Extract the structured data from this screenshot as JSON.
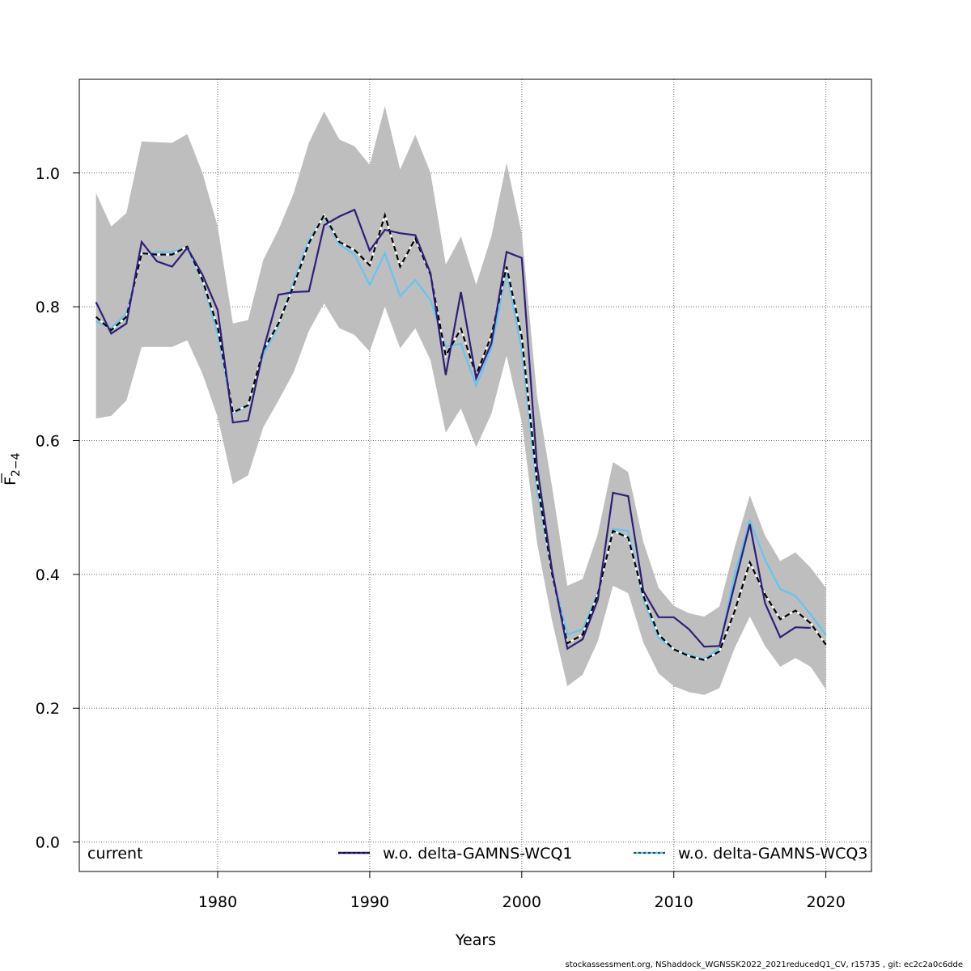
{
  "chart_data": {
    "type": "line",
    "title": "",
    "xlabel": "Years",
    "ylabel_main": "F",
    "ylabel_sub": "2−4",
    "xlim": [
      1970.9,
      2023.0
    ],
    "ylim": [
      -0.044,
      1.14
    ],
    "x_ticks": [
      1980,
      1990,
      2000,
      2010,
      2020
    ],
    "x_tick_labels": [
      "1980",
      "1990",
      "2000",
      "2010",
      "2020"
    ],
    "y_ticks": [
      0.0,
      0.2,
      0.4,
      0.6,
      0.8,
      1.0
    ],
    "y_tick_labels": [
      "0.0",
      "0.2",
      "0.4",
      "0.6",
      "0.8",
      "1.0"
    ],
    "grid": true,
    "legend_position": "bottom",
    "x": [
      1972,
      1973,
      1974,
      1975,
      1976,
      1977,
      1978,
      1979,
      1980,
      1981,
      1982,
      1983,
      1984,
      1985,
      1986,
      1987,
      1988,
      1989,
      1990,
      1991,
      1992,
      1993,
      1994,
      1995,
      1996,
      1997,
      1998,
      1999,
      2000,
      2001,
      2002,
      2003,
      2004,
      2005,
      2006,
      2007,
      2008,
      2009,
      2010,
      2011,
      2012,
      2013,
      2014,
      2015,
      2016,
      2017,
      2018,
      2019,
      2020
    ],
    "band": {
      "color": "#bebebe",
      "upper": [
        0.97,
        0.92,
        0.94,
        1.047,
        1.046,
        1.045,
        1.058,
        1.0,
        0.92,
        0.775,
        0.78,
        0.87,
        0.915,
        0.97,
        1.045,
        1.092,
        1.05,
        1.04,
        1.012,
        1.1,
        1.005,
        1.057,
        1.0,
        0.863,
        0.905,
        0.833,
        0.905,
        1.015,
        0.91,
        0.668,
        0.53,
        0.383,
        0.393,
        0.46,
        0.568,
        0.553,
        0.448,
        0.38,
        0.353,
        0.342,
        0.337,
        0.352,
        0.44,
        0.518,
        0.458,
        0.42,
        0.433,
        0.41,
        0.38
      ],
      "lower": [
        0.633,
        0.637,
        0.66,
        0.74,
        0.74,
        0.74,
        0.75,
        0.7,
        0.635,
        0.535,
        0.548,
        0.62,
        0.66,
        0.702,
        0.764,
        0.805,
        0.768,
        0.758,
        0.733,
        0.8,
        0.738,
        0.768,
        0.72,
        0.612,
        0.648,
        0.59,
        0.64,
        0.727,
        0.628,
        0.448,
        0.33,
        0.233,
        0.25,
        0.3,
        0.383,
        0.372,
        0.298,
        0.252,
        0.233,
        0.224,
        0.22,
        0.23,
        0.29,
        0.337,
        0.293,
        0.262,
        0.275,
        0.262,
        0.228
      ]
    },
    "series": [
      {
        "name": "current",
        "color": "#000000",
        "style": "dashed",
        "values": [
          0.785,
          0.765,
          0.785,
          0.88,
          0.878,
          0.878,
          0.89,
          0.84,
          0.77,
          0.642,
          0.653,
          0.735,
          0.775,
          0.832,
          0.895,
          0.937,
          0.897,
          0.885,
          0.862,
          0.937,
          0.86,
          0.902,
          0.848,
          0.727,
          0.767,
          0.698,
          0.757,
          0.86,
          0.755,
          0.54,
          0.4,
          0.297,
          0.31,
          0.37,
          0.465,
          0.455,
          0.368,
          0.31,
          0.288,
          0.278,
          0.272,
          0.285,
          0.345,
          0.418,
          0.37,
          0.333,
          0.346,
          0.327,
          0.295
        ]
      },
      {
        "name": "w.o. delta-GAMNS-WCQ1",
        "color": "#2e1e78",
        "style": "solid",
        "values": [
          0.807,
          0.76,
          0.775,
          0.897,
          0.868,
          0.86,
          0.888,
          0.848,
          0.795,
          0.627,
          0.63,
          0.735,
          0.818,
          0.822,
          0.823,
          0.922,
          0.935,
          0.945,
          0.884,
          0.915,
          0.91,
          0.907,
          0.85,
          0.698,
          0.822,
          0.693,
          0.745,
          0.882,
          0.873,
          0.563,
          0.405,
          0.289,
          0.303,
          0.362,
          0.522,
          0.517,
          0.375,
          0.336,
          0.336,
          0.318,
          0.292,
          0.293,
          0.385,
          0.475,
          0.357,
          0.306,
          0.321,
          0.32,
          null
        ]
      },
      {
        "name": "w.o. delta-GAMNS-WCQ3",
        "color": "#64c4f0",
        "style": "solid",
        "values": [
          0.778,
          0.768,
          0.79,
          0.878,
          0.882,
          0.882,
          0.888,
          0.838,
          0.76,
          0.64,
          0.652,
          0.728,
          0.772,
          0.838,
          0.9,
          0.935,
          0.893,
          0.878,
          0.833,
          0.88,
          0.816,
          0.84,
          0.81,
          0.74,
          0.745,
          0.682,
          0.738,
          0.853,
          0.735,
          0.527,
          0.4,
          0.31,
          0.318,
          0.372,
          0.468,
          0.465,
          0.362,
          0.305,
          0.288,
          0.28,
          0.273,
          0.29,
          0.4,
          0.48,
          0.422,
          0.378,
          0.368,
          0.34,
          0.31
        ]
      }
    ]
  },
  "legend": {
    "items": [
      "current",
      "w.o. delta-GAMNS-WCQ1",
      "w.o. delta-GAMNS-WCQ3"
    ]
  },
  "footer": {
    "text": "stockassessment.org, NShaddock_WGNSSK2022_2021reducedQ1_CV, r15735 , git: ec2c2a0c6dde"
  }
}
